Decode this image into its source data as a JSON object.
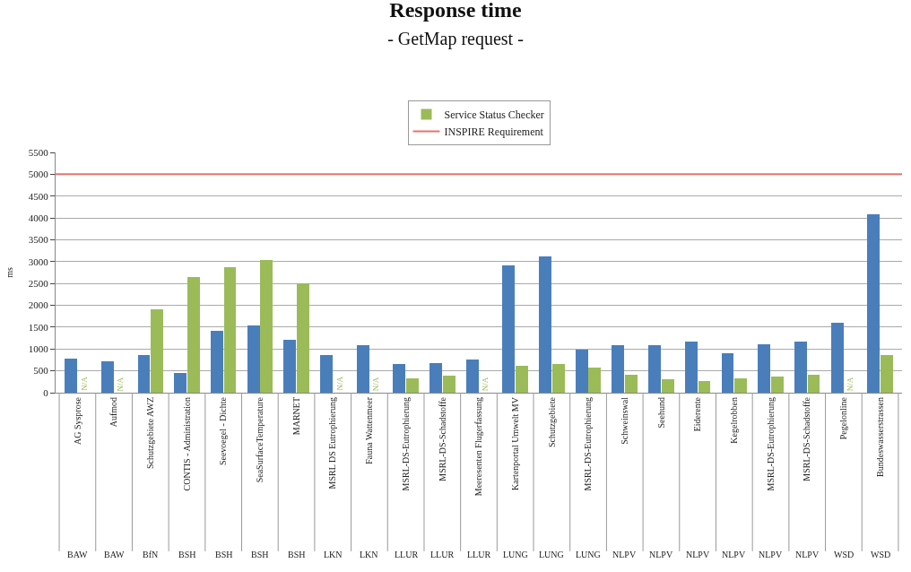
{
  "chart_data": {
    "type": "bar",
    "title": "Response time",
    "subtitle": "- GetMap request -",
    "ylabel": "ms",
    "categories": [
      "AG Sysprose",
      "Aufmod",
      "Schutzgebiete AWZ",
      "CONTIS - Administration",
      "Seevoegel - Dichte",
      "SeaSurfaceTemperature",
      "MARNET",
      "MSRL DS Eutrophierung",
      "Fauna Wattenmeer",
      "MSRL-DS-Eutrophierung",
      "MSRL-DS-Schadstoffe",
      "Meeresenten Flugerfassung",
      "Kartenportal Umwelt MV",
      "Schutzgebiete",
      "MSRL-DS-Eutrophierung",
      "Schweinswal",
      "Seehund",
      "Eiderente",
      "Kegelrobben",
      "MSRL-DS-Eutrophierung",
      "MSRL-DS-Schadstoffe",
      "Pegelonline",
      "Bundeswasserstrassen"
    ],
    "series": [
      {
        "color": "#4a7ebb",
        "values": [
          780,
          720,
          870,
          460,
          1420,
          1540,
          1220,
          870,
          1090,
          650,
          670,
          760,
          2910,
          3110,
          980,
          1080,
          1080,
          1170,
          900,
          1100,
          1170,
          1610,
          4080
        ]
      },
      {
        "name": "Service Status Checker",
        "color": "#9bbb59",
        "values": [
          null,
          null,
          1900,
          2640,
          2870,
          3040,
          2500,
          null,
          null,
          330,
          390,
          null,
          620,
          660,
          570,
          410,
          300,
          260,
          330,
          360,
          410,
          null,
          870
        ],
        "value_labels": [
          "N/A",
          "N/A",
          null,
          null,
          null,
          null,
          null,
          "N/A",
          "N/A",
          null,
          null,
          "N/A",
          null,
          null,
          null,
          null,
          null,
          null,
          null,
          null,
          null,
          "N/A",
          null
        ]
      }
    ],
    "ref_lines": [
      {
        "axis": "y",
        "value": 5000,
        "label": "INSPIRE Requirement",
        "color": "#e8736f"
      }
    ],
    "annotations": [
      "BAW",
      "BAW",
      "BfN",
      "BSH",
      "BSH",
      "BSH",
      "BSH",
      "LKN",
      "LKN",
      "LLUR",
      "LLUR",
      "LLUR",
      "LUNG",
      "LUNG",
      "LUNG",
      "NLPV",
      "NLPV",
      "NLPV",
      "NLPV",
      "NLPV",
      "NLPV",
      "WSD",
      "WSD"
    ],
    "ylim": [
      0,
      5500
    ],
    "yticks": [
      0,
      500,
      1000,
      1500,
      2000,
      2500,
      3000,
      3500,
      4000,
      4500,
      5000,
      5500
    ],
    "grid": "y",
    "legend": "top"
  }
}
